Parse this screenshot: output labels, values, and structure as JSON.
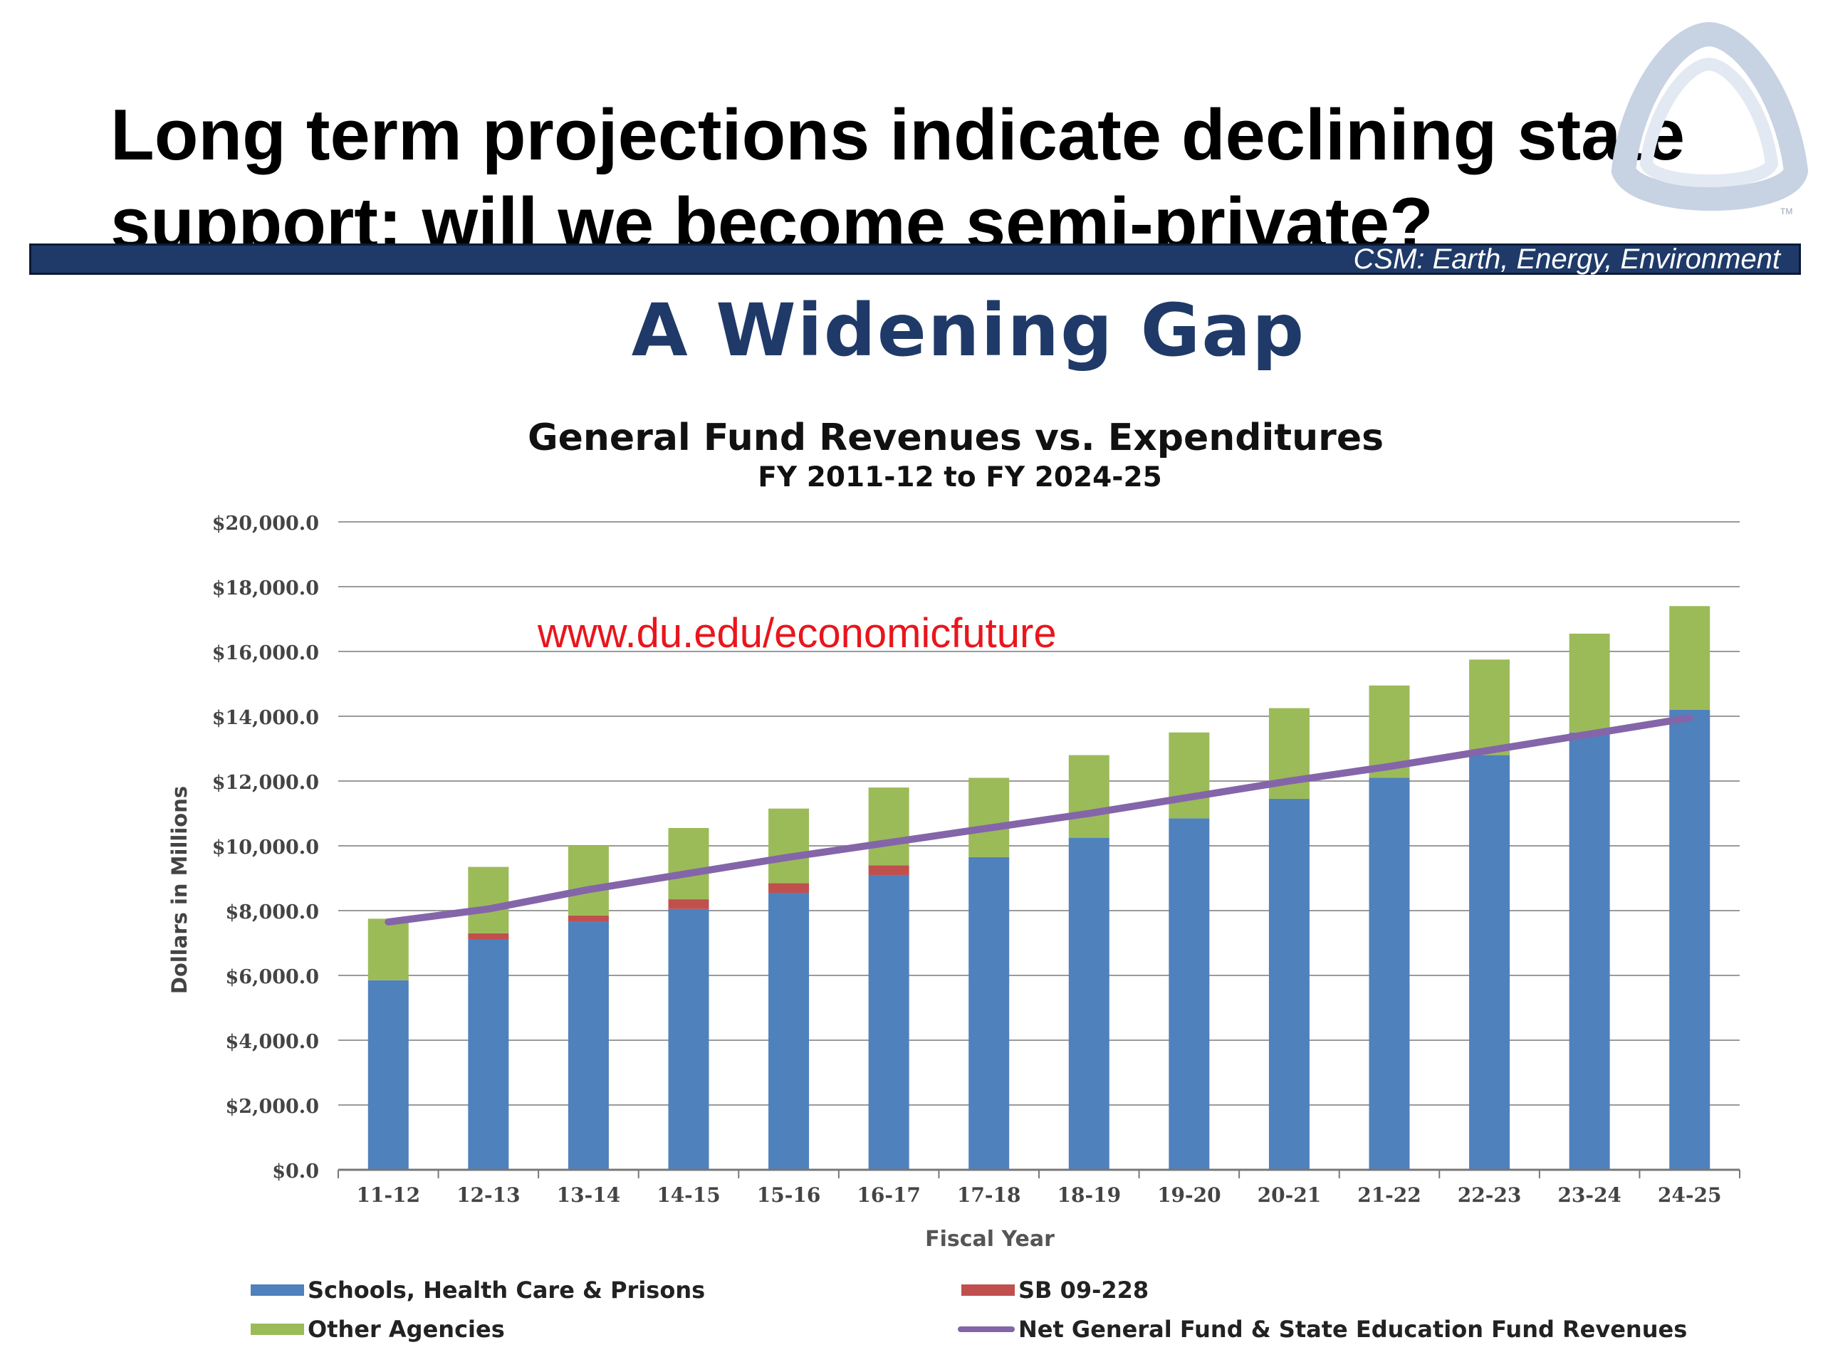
{
  "slide": {
    "title_line1": "Long term projections indicate declining state",
    "title_line2": "support: will we become semi-private?",
    "banner_text": "CSM: Earth, Energy, Environment",
    "heading": "A Widening Gap",
    "url_note": "www.du.edu/economicfuture",
    "logo_icon": "csm-triangle-logo-icon",
    "tm_mark": "TM"
  },
  "chart_data": {
    "type": "bar",
    "stacked": true,
    "title": "General Fund Revenues vs. Expenditures",
    "subtitle": "FY 2011-12 to FY 2024-25",
    "xlabel": "Fiscal Year",
    "ylabel": "Dollars in Millions",
    "ylim": [
      0,
      20000
    ],
    "ytick_values": [
      0,
      2000,
      4000,
      6000,
      8000,
      10000,
      12000,
      14000,
      16000,
      18000,
      20000
    ],
    "ytick_labels": [
      "$0.0",
      "$2,000.0",
      "$4,000.0",
      "$6,000.0",
      "$8,000.0",
      "$10,000.0",
      "$12,000.0",
      "$14,000.0",
      "$16,000.0",
      "$18,000.0",
      "$20,000.0"
    ],
    "grid": true,
    "legend_position": "bottom",
    "categories": [
      "11-12",
      "12-13",
      "13-14",
      "14-15",
      "15-16",
      "16-17",
      "17-18",
      "18-19",
      "19-20",
      "20-21",
      "21-22",
      "22-23",
      "23-24",
      "24-25"
    ],
    "series": [
      {
        "name": "Schools, Health Care & Prisons",
        "kind": "bar",
        "color": "#4f81bd",
        "values": [
          5850,
          7100,
          7650,
          8050,
          8550,
          9100,
          9650,
          10250,
          10850,
          11450,
          12100,
          12800,
          13500,
          14200
        ]
      },
      {
        "name": "SB 09-228",
        "kind": "bar",
        "color": "#c0504d",
        "values": [
          0,
          200,
          200,
          300,
          300,
          300,
          0,
          0,
          0,
          0,
          0,
          0,
          0,
          0
        ]
      },
      {
        "name": "Other Agencies",
        "kind": "bar",
        "color": "#9bbb59",
        "values": [
          1900,
          2050,
          2150,
          2200,
          2300,
          2400,
          2450,
          2550,
          2650,
          2800,
          2850,
          2950,
          3050,
          3200
        ]
      },
      {
        "name": "Net General Fund & State Education Fund Revenues",
        "kind": "line",
        "color": "#8465a9",
        "values": [
          7650,
          8050,
          8650,
          9150,
          9650,
          10100,
          10550,
          11000,
          11500,
          12000,
          12450,
          12950,
          13450,
          13950
        ]
      }
    ]
  }
}
